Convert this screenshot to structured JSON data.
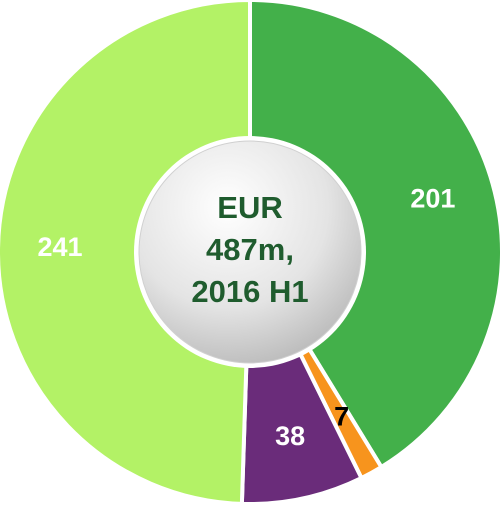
{
  "chart_data": {
    "type": "donut",
    "categories": [
      null,
      null,
      null,
      null
    ],
    "values": [
      201,
      7,
      38,
      241
    ],
    "colors": [
      "#43b04a",
      "#f7941d",
      "#6a2c7a",
      "#b3f266"
    ],
    "label_colors": [
      "#ffffff",
      "#000000",
      "#ffffff",
      "#ffffff"
    ],
    "center_text": [
      "EUR",
      "487m,",
      "2016 H1"
    ]
  }
}
